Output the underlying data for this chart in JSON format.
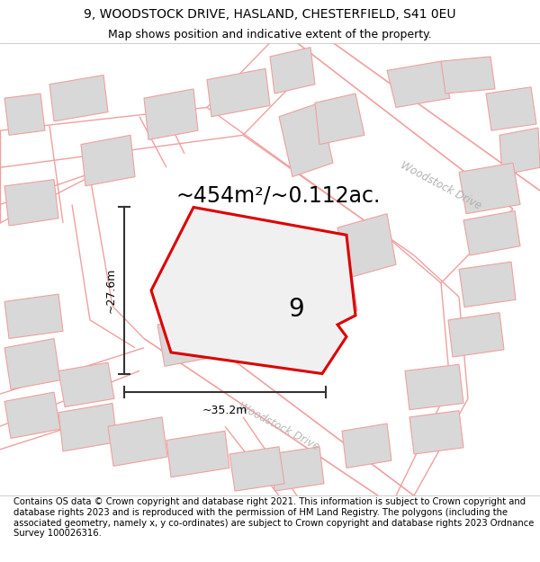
{
  "title_line1": "9, WOODSTOCK DRIVE, HASLAND, CHESTERFIELD, S41 0EU",
  "title_line2": "Map shows position and indicative extent of the property.",
  "footer_text": "Contains OS data © Crown copyright and database right 2021. This information is subject to Crown copyright and database rights 2023 and is reproduced with the permission of HM Land Registry. The polygons (including the associated geometry, namely x, y co-ordinates) are subject to Crown copyright and database rights 2023 Ordnance Survey 100026316.",
  "area_label": "~454m²/~0.112ac.",
  "property_number": "9",
  "dim_width": "~35.2m",
  "dim_height": "~27.6m",
  "background_color": "#ebebeb",
  "plot_color": "#dd0000",
  "plot_fill": "#f0f0f0",
  "building_color": "#d8d8d8",
  "road_line_color": "#f0a0a0",
  "road_fill_color": "#f8f8f8",
  "dim_line_color": "#333333",
  "title_fontsize": 10,
  "subtitle_fontsize": 9,
  "footer_fontsize": 7.2,
  "area_fontsize": 17,
  "number_fontsize": 20
}
